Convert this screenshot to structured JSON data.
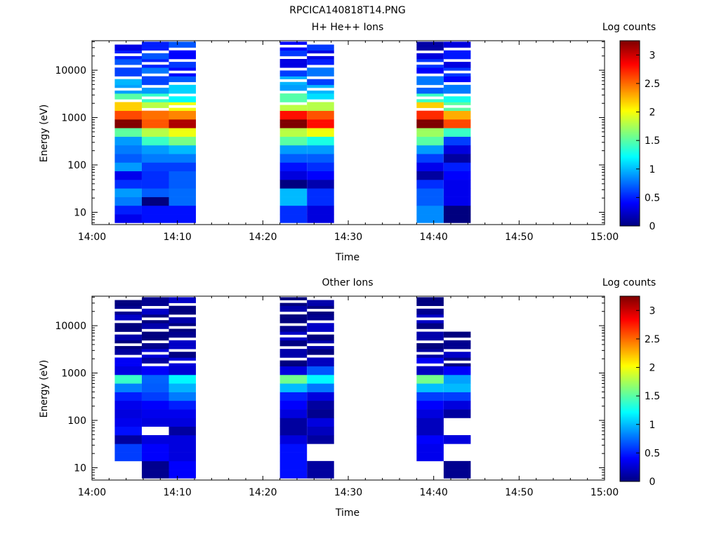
{
  "figure": {
    "title": "RPCICA140818T14.PNG"
  },
  "colorscale": {
    "stops": [
      "#00007f",
      "#0000ff",
      "#007fff",
      "#00ffff",
      "#7fff7f",
      "#ffff00",
      "#ff7f00",
      "#ff0000",
      "#7f0000"
    ],
    "range": [
      0,
      3.25
    ]
  },
  "chart_data": [
    {
      "type": "heatmap",
      "title": "H+ He++ Ions",
      "xlabel": "Time",
      "ylabel": "Energy (eV)",
      "colorbar_label": "Log counts",
      "colorbar_ticks": [
        "0",
        "0.5",
        "1",
        "1.5",
        "2",
        "2.5",
        "3"
      ],
      "colorbar_tick_values": [
        0,
        0.5,
        1,
        1.5,
        2,
        2.5,
        3
      ],
      "x_range": [
        "14:00",
        "15:00"
      ],
      "x_ticks": [
        "14:00",
        "14:10",
        "14:20",
        "14:30",
        "14:40",
        "14:50",
        "15:00"
      ],
      "y_scale": "log",
      "y_range": [
        5.5,
        42000
      ],
      "y_ticks": [
        "10",
        "100",
        "1000",
        "10000"
      ],
      "y_tick_values": [
        10,
        100,
        1000,
        10000
      ],
      "time_columns": [
        {
          "start": "14:02:40",
          "end": "14:05:50",
          "profile": [
            0.35,
            0.5,
            0.8,
            0.9,
            0.55,
            0.35,
            0.9,
            0.7,
            0.8,
            0.9,
            1.7,
            3.15,
            2.7,
            2.0,
            1.5,
            1.1,
            0.9,
            0.7,
            0.5,
            0.5,
            0.5
          ]
        },
        {
          "start": "14:05:50",
          "end": "14:09:00",
          "profile": [
            0.45,
            0.45,
            0.0,
            0.7,
            0.55,
            0.55,
            0.6,
            0.8,
            0.9,
            1.4,
            1.8,
            2.75,
            2.4,
            1.9,
            1.2,
            0.9,
            0.8,
            0.7,
            0.6,
            0.5,
            0.5
          ]
        },
        {
          "start": "14:09:00",
          "end": "14:12:10",
          "profile": [
            0.45,
            0.45,
            0.75,
            0.75,
            0.7,
            0.7,
            0.6,
            0.8,
            1.0,
            1.6,
            1.8,
            3.1,
            2.6,
            1.9,
            1.3,
            0.9,
            0.7,
            0.6,
            0.5,
            0.5,
            0.5
          ]
        },
        {
          "start": "14:22:00",
          "end": "14:25:10",
          "profile": [
            0.55,
            0.55,
            1.0,
            1.0,
            0.0,
            0.3,
            0.45,
            0.7,
            0.9,
            1.5,
            1.9,
            3.2,
            2.8,
            2.0,
            1.4,
            1.0,
            0.8,
            0.6,
            0.5,
            0.5,
            0.5
          ]
        },
        {
          "start": "14:25:10",
          "end": "14:28:20",
          "profile": [
            0.3,
            0.3,
            0.55,
            0.55,
            0.15,
            0.4,
            0.55,
            0.7,
            0.9,
            1.3,
            1.9,
            2.9,
            2.4,
            1.8,
            1.3,
            0.9,
            0.7,
            0.6,
            0.5,
            0.5,
            0.5
          ]
        },
        {
          "start": "14:38:00",
          "end": "14:41:10",
          "profile": [
            0.85,
            0.85,
            0.7,
            0.7,
            0.55,
            0.1,
            0.35,
            0.6,
            0.9,
            1.5,
            1.9,
            3.2,
            2.8,
            2.0,
            1.4,
            0.9,
            0.7,
            0.5,
            0.4,
            0.3,
            0.3
          ]
        },
        {
          "start": "14:41:10",
          "end": "14:44:20",
          "profile": [
            0.0,
            0.0,
            0.35,
            0.35,
            0.35,
            0.4,
            0.5,
            0.1,
            0.3,
            0.6,
            1.4,
            2.8,
            2.2,
            1.6,
            1.1,
            0.8,
            0.6,
            0.5,
            0.4,
            0.3,
            0.3
          ]
        }
      ]
    },
    {
      "type": "heatmap",
      "title": "Other Ions",
      "xlabel": "Time",
      "ylabel": "Energy (eV)",
      "colorbar_label": "Log counts",
      "colorbar_ticks": [
        "0",
        "0.5",
        "1",
        "1.5",
        "2",
        "2.5",
        "3"
      ],
      "colorbar_tick_values": [
        0,
        0.5,
        1,
        1.5,
        2,
        2.5,
        3
      ],
      "x_range": [
        "14:00",
        "15:00"
      ],
      "x_ticks": [
        "14:00",
        "14:10",
        "14:20",
        "14:30",
        "14:40",
        "14:50",
        "15:00"
      ],
      "y_scale": "log",
      "y_range": [
        5.5,
        42000
      ],
      "y_ticks": [
        "10",
        "100",
        "1000",
        "10000"
      ],
      "y_tick_values": [
        10,
        100,
        1000,
        10000
      ],
      "time_columns": [
        {
          "start": "14:02:40",
          "end": "14:05:50",
          "profile": [
            null,
            null,
            0.6,
            0.6,
            0.1,
            0.45,
            0.35,
            0.3,
            0.35,
            0.5,
            1.0,
            1.3,
            0.4,
            0.2,
            0.1,
            0.05,
            0.05,
            0.05,
            0.05,
            0.05,
            0.05
          ]
        },
        {
          "start": "14:05:50",
          "end": "14:09:00",
          "profile": [
            0.05,
            0.05,
            0.4,
            0.4,
            0.3,
            null,
            0.3,
            0.35,
            0.4,
            0.6,
            0.7,
            0.9,
            0.3,
            0.2,
            0.1,
            0.05,
            0.05,
            0.05,
            0.05,
            0.05,
            0.05
          ]
        },
        {
          "start": "14:09:00",
          "end": "14:12:10",
          "profile": [
            0.4,
            0.4,
            0.3,
            0.3,
            0.3,
            0.1,
            0.3,
            0.35,
            0.5,
            0.8,
            0.8,
            1.2,
            0.45,
            0.2,
            0.1,
            0.05,
            0.05,
            0.05,
            0.05,
            0.05,
            0.05
          ]
        },
        {
          "start": "14:22:00",
          "end": "14:25:10",
          "profile": [
            0.45,
            0.45,
            0.45,
            0.45,
            0.3,
            0.1,
            0.1,
            0.3,
            0.4,
            0.5,
            1.1,
            1.4,
            0.3,
            0.1,
            0.05,
            0.1,
            0.05,
            0.05,
            0.05,
            0.05,
            0.05
          ]
        },
        {
          "start": "14:25:10",
          "end": "14:28:20",
          "profile": [
            0.1,
            0.1,
            null,
            null,
            0.1,
            0.2,
            0.3,
            0.05,
            0.1,
            0.3,
            0.7,
            1.3,
            0.5,
            0.2,
            0.1,
            0.05,
            0.05,
            0.05,
            0.05,
            0.05,
            0.05
          ]
        },
        {
          "start": "14:38:00",
          "end": "14:41:10",
          "profile": [
            null,
            null,
            0.35,
            0.35,
            0.4,
            0.2,
            0.2,
            0.3,
            0.4,
            0.6,
            1.2,
            1.5,
            0.3,
            0.2,
            0.1,
            0.1,
            0.05,
            0.1,
            0.05,
            0.05,
            0.05
          ]
        },
        {
          "start": "14:41:10",
          "end": "14:44:20",
          "profile": [
            0.05,
            0.05,
            null,
            null,
            0.3,
            null,
            null,
            0.1,
            0.3,
            0.6,
            1.0,
            1.1,
            0.3,
            0.1,
            0.05,
            0.05,
            0.05,
            null,
            null,
            null,
            null
          ]
        }
      ]
    }
  ]
}
